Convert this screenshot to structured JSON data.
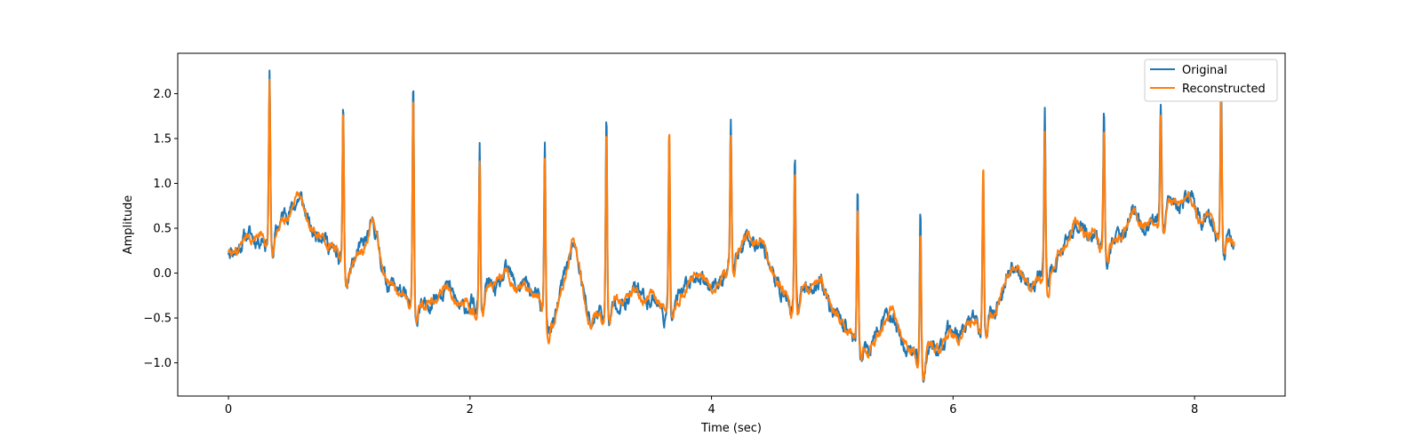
{
  "chart_data": {
    "type": "line",
    "title": "",
    "xlabel": "Time (sec)",
    "ylabel": "Amplitude",
    "xlim": [
      -0.42,
      8.75
    ],
    "ylim": [
      -1.37,
      2.45
    ],
    "xticks": [
      0,
      2,
      4,
      6,
      8
    ],
    "xtick_labels": [
      "0",
      "2",
      "4",
      "6",
      "8"
    ],
    "yticks": [
      -1.0,
      -0.5,
      0.0,
      0.5,
      1.0,
      1.5,
      2.0
    ],
    "ytick_labels": [
      "−1.0",
      "−0.5",
      "0.0",
      "0.5",
      "1.0",
      "1.5",
      "2.0"
    ],
    "grid": false,
    "legend_position": "upper right",
    "baseline": {
      "x": [
        0,
        0.25,
        0.6,
        0.85,
        1.0,
        1.2,
        1.3,
        1.5,
        1.75,
        2.0,
        2.3,
        2.55,
        2.7,
        2.85,
        3.0,
        3.3,
        3.6,
        3.9,
        4.1,
        4.3,
        4.6,
        4.9,
        5.1,
        5.3,
        5.5,
        5.75,
        6.0,
        6.3,
        6.5,
        6.8,
        7.0,
        7.3,
        7.6,
        7.9,
        8.1,
        8.33
      ],
      "y": [
        0.27,
        0.4,
        0.7,
        0.25,
        0.1,
        0.35,
        0.0,
        -0.35,
        -0.3,
        -0.35,
        -0.1,
        -0.25,
        -0.5,
        0.2,
        -0.5,
        -0.3,
        -0.35,
        -0.15,
        -0.05,
        0.45,
        -0.25,
        -0.2,
        -0.6,
        -0.8,
        -0.6,
        -0.95,
        -0.75,
        -0.45,
        -0.1,
        0.0,
        0.45,
        0.35,
        0.55,
        0.8,
        0.55,
        0.38
      ]
    },
    "series": [
      {
        "name": "Original",
        "color": "#1f77b4",
        "r_peaks": [
          {
            "x": 0.34,
            "y": 2.28
          },
          {
            "x": 0.95,
            "y": 1.93
          },
          {
            "x": 1.53,
            "y": 2.03
          },
          {
            "x": 2.08,
            "y": 1.46
          },
          {
            "x": 2.62,
            "y": 1.54
          },
          {
            "x": 3.13,
            "y": 1.74
          },
          {
            "x": 3.65,
            "y": 1.69
          },
          {
            "x": 4.16,
            "y": 1.65
          },
          {
            "x": 4.69,
            "y": 1.35
          },
          {
            "x": 5.21,
            "y": 0.86
          },
          {
            "x": 5.73,
            "y": 0.74
          },
          {
            "x": 6.25,
            "y": 1.2
          },
          {
            "x": 6.76,
            "y": 1.67
          },
          {
            "x": 7.25,
            "y": 1.89
          },
          {
            "x": 7.72,
            "y": 1.82
          },
          {
            "x": 8.22,
            "y": 2.15
          }
        ]
      },
      {
        "name": "Reconstructed",
        "color": "#ff7f0e",
        "r_peaks": [
          {
            "x": 0.34,
            "y": 2.2
          },
          {
            "x": 0.95,
            "y": 1.94
          },
          {
            "x": 1.53,
            "y": 1.95
          },
          {
            "x": 2.08,
            "y": 1.32
          },
          {
            "x": 2.62,
            "y": 1.35
          },
          {
            "x": 3.13,
            "y": 1.7
          },
          {
            "x": 3.65,
            "y": 1.67
          },
          {
            "x": 4.16,
            "y": 1.55
          },
          {
            "x": 4.69,
            "y": 1.27
          },
          {
            "x": 5.21,
            "y": 0.72
          },
          {
            "x": 5.73,
            "y": 0.57
          },
          {
            "x": 6.25,
            "y": 1.21
          },
          {
            "x": 6.76,
            "y": 1.62
          },
          {
            "x": 7.25,
            "y": 1.65
          },
          {
            "x": 7.72,
            "y": 1.8
          },
          {
            "x": 8.22,
            "y": 1.98
          }
        ]
      }
    ]
  }
}
